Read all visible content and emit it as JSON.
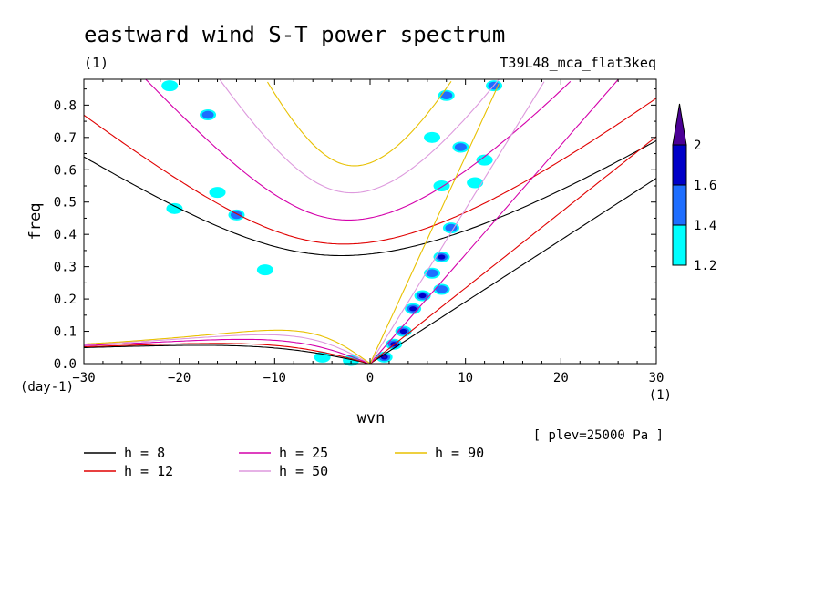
{
  "chart_data": {
    "type": "contour",
    "title": "eastward wind S-T power spectrum",
    "subtitle_left": "(1)",
    "subtitle_right": "T39L48_mca_flat3keq",
    "xlabel": "wvn",
    "ylabel": "freq",
    "x_unit": "(1)",
    "y_unit": "(day-1)",
    "xlim": [
      -30,
      30
    ],
    "ylim": [
      0,
      0.88
    ],
    "xticks": [
      "-30",
      "-20",
      "-10",
      "0",
      "10",
      "20",
      "30"
    ],
    "yticks": [
      "0.0",
      "0.1",
      "0.2",
      "0.3",
      "0.4",
      "0.5",
      "0.6",
      "0.7",
      "0.8"
    ],
    "annotation": "[ plev=25000 Pa ]",
    "colorbar": {
      "levels": [
        "1.2",
        "1.4",
        "1.6",
        "2"
      ],
      "colors": [
        "#00ffff",
        "#1e6eff",
        "#0000c8",
        "#4b0096"
      ]
    },
    "dispersion_curves": [
      {
        "name": "h =  8",
        "h": 8,
        "color": "#000000"
      },
      {
        "name": "h = 12",
        "h": 12,
        "color": "#e00000"
      },
      {
        "name": "h = 25",
        "h": 25,
        "color": "#d400aa"
      },
      {
        "name": "h = 50",
        "h": 50,
        "color": "#dd99dd"
      },
      {
        "name": "h = 90",
        "h": 90,
        "color": "#e8c000"
      }
    ],
    "contour_blobs": [
      {
        "x": 1.5,
        "y": 0.02,
        "level": 4
      },
      {
        "x": 2.5,
        "y": 0.06,
        "level": 4
      },
      {
        "x": 3.5,
        "y": 0.1,
        "level": 3
      },
      {
        "x": 4.5,
        "y": 0.17,
        "level": 3
      },
      {
        "x": 5.5,
        "y": 0.21,
        "level": 3
      },
      {
        "x": 6.5,
        "y": 0.28,
        "level": 2
      },
      {
        "x": 7.5,
        "y": 0.33,
        "level": 3
      },
      {
        "x": 7.5,
        "y": 0.23,
        "level": 2
      },
      {
        "x": 8.5,
        "y": 0.42,
        "level": 2
      },
      {
        "x": 7.5,
        "y": 0.55,
        "level": 1
      },
      {
        "x": 6.5,
        "y": 0.7,
        "level": 1
      },
      {
        "x": 9.5,
        "y": 0.67,
        "level": 2
      },
      {
        "x": 8,
        "y": 0.83,
        "level": 2
      },
      {
        "x": 13,
        "y": 0.86,
        "level": 2
      },
      {
        "x": -21,
        "y": 0.86,
        "level": 1
      },
      {
        "x": -17,
        "y": 0.77,
        "level": 2
      },
      {
        "x": -14,
        "y": 0.46,
        "level": 2
      },
      {
        "x": -20.5,
        "y": 0.48,
        "level": 1
      },
      {
        "x": -16,
        "y": 0.53,
        "level": 1
      },
      {
        "x": -11,
        "y": 0.29,
        "level": 1
      },
      {
        "x": -5,
        "y": 0.02,
        "level": 1
      },
      {
        "x": -2,
        "y": 0.01,
        "level": 1
      },
      {
        "x": 11,
        "y": 0.56,
        "level": 1
      },
      {
        "x": 12,
        "y": 0.63,
        "level": 1
      }
    ]
  },
  "legend": {
    "row1": [
      "h =  8",
      "h = 25",
      "h = 90"
    ],
    "row2": [
      "h = 12",
      "h = 50"
    ]
  }
}
